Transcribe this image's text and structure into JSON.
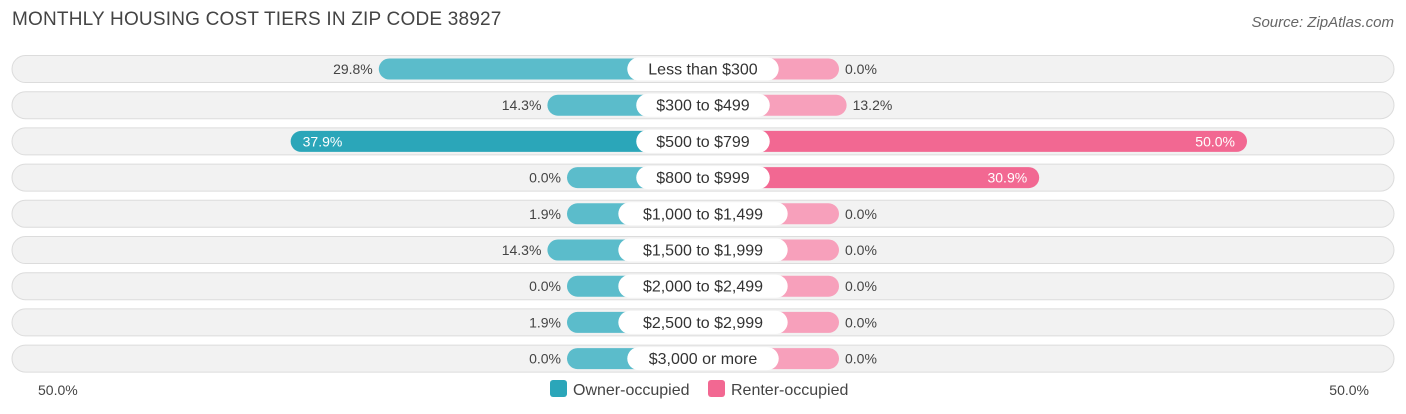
{
  "title": "MONTHLY HOUSING COST TIERS IN ZIP CODE 38927",
  "source": "Source: ZipAtlas.com",
  "chart_data": {
    "type": "bar",
    "orientation": "horizontal-diverging",
    "categories": [
      "Less than $300",
      "$300 to $499",
      "$500 to $799",
      "$800 to $999",
      "$1,000 to $1,499",
      "$1,500 to $1,999",
      "$2,000 to $2,499",
      "$2,500 to $2,999",
      "$3,000 or more"
    ],
    "series": [
      {
        "name": "Owner-occupied",
        "side": "left",
        "color": "#5bbccb",
        "highlight_color": "#2ba6b9",
        "values": [
          29.8,
          14.3,
          37.9,
          0.0,
          1.9,
          14.3,
          0.0,
          1.9,
          0.0
        ],
        "labels": [
          "29.8%",
          "14.3%",
          "37.9%",
          "0.0%",
          "1.9%",
          "14.3%",
          "0.0%",
          "1.9%",
          "0.0%"
        ]
      },
      {
        "name": "Renter-occupied",
        "side": "right",
        "color": "#f7a0bb",
        "highlight_color": "#f26892",
        "values": [
          0.0,
          13.2,
          50.0,
          30.9,
          0.0,
          0.0,
          0.0,
          0.0,
          0.0
        ],
        "labels": [
          "0.0%",
          "13.2%",
          "50.0%",
          "30.9%",
          "0.0%",
          "0.0%",
          "0.0%",
          "0.0%",
          "0.0%"
        ]
      }
    ],
    "xlim": [
      -50,
      50
    ],
    "axis_left_label": "50.0%",
    "axis_right_label": "50.0%",
    "legend_placement": "bottom-center",
    "grid": false
  }
}
